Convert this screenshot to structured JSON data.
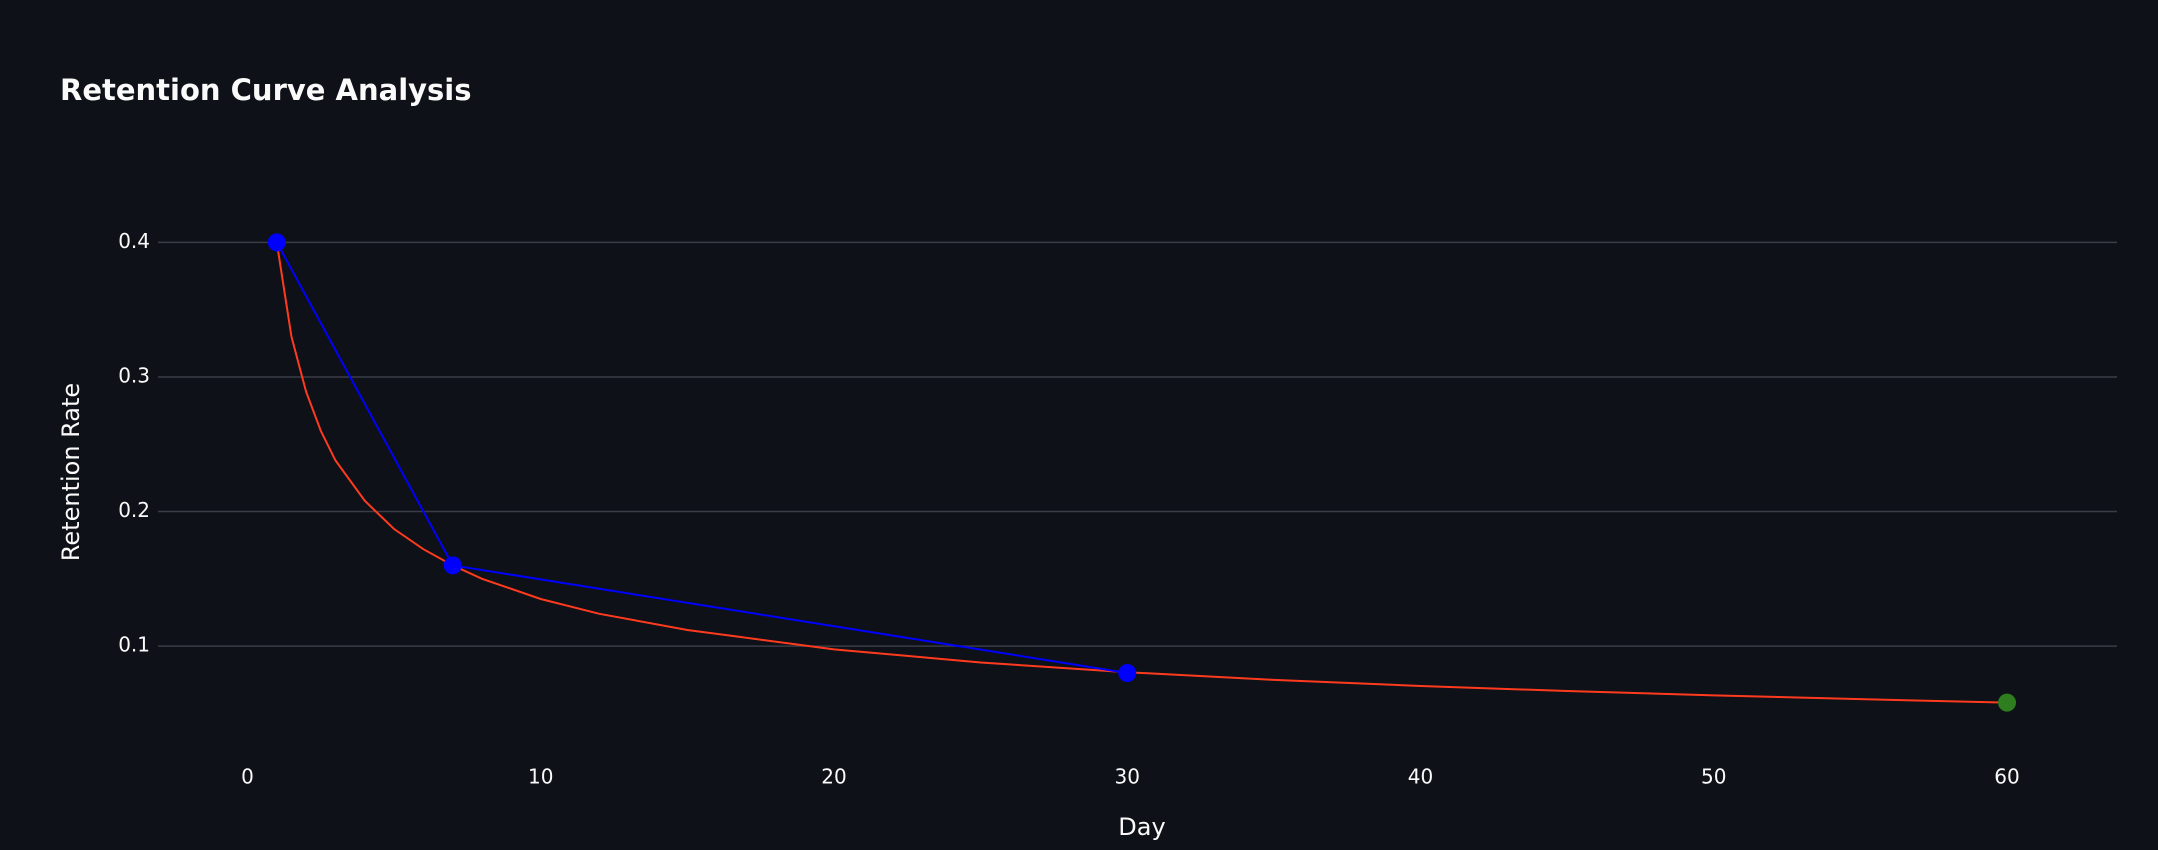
{
  "chart_data": {
    "type": "line",
    "title": "Retention Curve Analysis",
    "x_label": "Day",
    "y_label": "Retention Rate",
    "series": [
      {
        "color": "#ff3b1f",
        "markers": false,
        "x": [
          1,
          1.5,
          2,
          2.5,
          3,
          4,
          5,
          6,
          7,
          8,
          10,
          12,
          15,
          20,
          25,
          30,
          35,
          40,
          45,
          50,
          55,
          60
        ],
        "values": [
          0.4,
          0.33,
          0.289,
          0.26,
          0.238,
          0.208,
          0.187,
          0.172,
          0.16,
          0.15,
          0.135,
          0.124,
          0.112,
          0.0976,
          0.0878,
          0.0806,
          0.0749,
          0.0704,
          0.0666,
          0.0634,
          0.0606,
          0.058
        ]
      },
      {
        "color": "#0000ff",
        "markers": true,
        "x": [
          1,
          7,
          30
        ],
        "values": [
          0.4,
          0.16,
          0.08
        ]
      },
      {
        "color": "#2e7d1f",
        "markers": true,
        "x": [
          60
        ],
        "values": [
          0.058
        ]
      }
    ],
    "xlim": [
      -3.05,
      63.75
    ],
    "xticks": [
      0,
      10,
      20,
      30,
      40,
      50,
      60
    ],
    "ylim": [
      0.028,
      0.43
    ],
    "yticks": [
      0.1,
      0.2,
      0.3,
      0.4
    ],
    "grid": true
  }
}
